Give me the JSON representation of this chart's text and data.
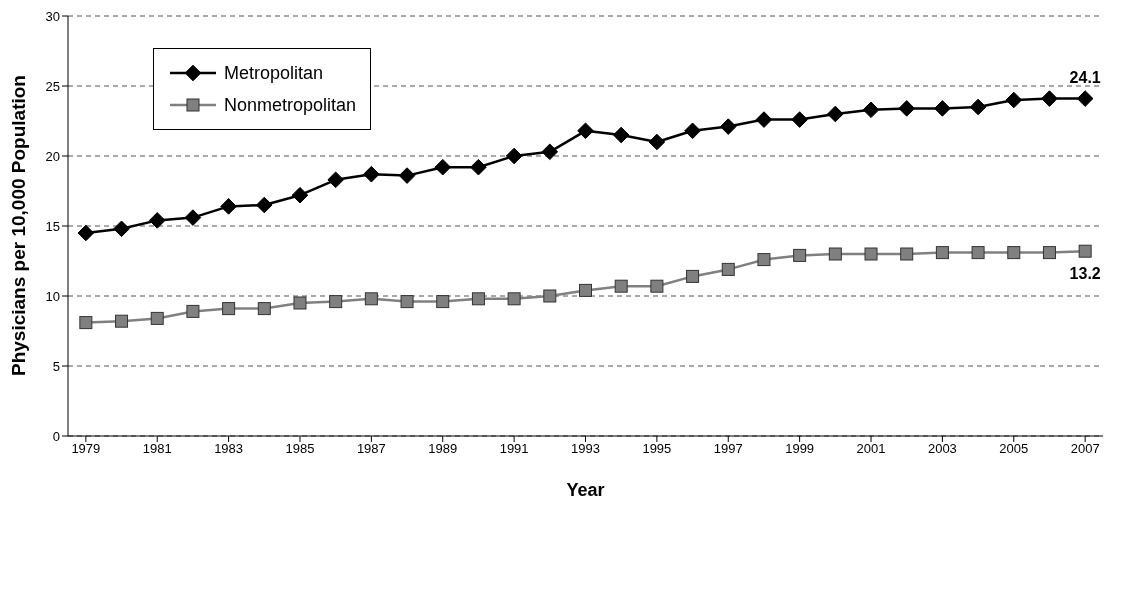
{
  "chart_data": {
    "type": "line",
    "xlabel": "Year",
    "ylabel": "Physicians per 10,000 Population",
    "x": [
      1979,
      1980,
      1981,
      1982,
      1983,
      1984,
      1985,
      1986,
      1987,
      1988,
      1989,
      1990,
      1991,
      1992,
      1993,
      1994,
      1995,
      1996,
      1997,
      1998,
      1999,
      2000,
      2001,
      2002,
      2003,
      2004,
      2005,
      2006,
      2007
    ],
    "series": [
      {
        "name": "Metropolitan",
        "color": "#000000",
        "marker": "diamond",
        "values": [
          14.5,
          14.8,
          15.4,
          15.6,
          16.4,
          16.5,
          17.2,
          18.3,
          18.7,
          18.6,
          19.2,
          19.2,
          20.0,
          20.3,
          21.8,
          21.5,
          21.0,
          21.8,
          22.1,
          22.6,
          22.6,
          23.0,
          23.3,
          23.4,
          23.4,
          23.5,
          24.0,
          24.1,
          24.1
        ],
        "value_labels": [
          null,
          null,
          null,
          null,
          null,
          null,
          null,
          null,
          null,
          null,
          null,
          null,
          null,
          null,
          null,
          null,
          null,
          null,
          null,
          null,
          null,
          null,
          null,
          null,
          null,
          null,
          null,
          null,
          "24.1"
        ]
      },
      {
        "name": "Nonmetropolitan",
        "color": "#808080",
        "marker": "square",
        "values": [
          8.1,
          8.2,
          8.4,
          8.9,
          9.1,
          9.1,
          9.5,
          9.6,
          9.8,
          9.6,
          9.6,
          9.8,
          9.8,
          10.0,
          10.4,
          10.7,
          10.7,
          11.4,
          11.9,
          12.6,
          12.9,
          13.0,
          13.0,
          13.0,
          13.1,
          13.1,
          13.1,
          13.1,
          13.2
        ],
        "value_labels": [
          null,
          null,
          null,
          null,
          null,
          null,
          null,
          null,
          null,
          null,
          null,
          null,
          null,
          null,
          null,
          null,
          null,
          null,
          null,
          null,
          null,
          null,
          null,
          null,
          null,
          null,
          null,
          null,
          "13.2"
        ]
      }
    ],
    "xlim": [
      1978.5,
      2007.5
    ],
    "xticks": [
      1979,
      1981,
      1983,
      1985,
      1987,
      1989,
      1991,
      1993,
      1995,
      1997,
      1999,
      2001,
      2003,
      2005,
      2007
    ],
    "ylim": [
      0,
      30
    ],
    "yticks": [
      0,
      5,
      10,
      15,
      20,
      25,
      30
    ],
    "grid": "y",
    "legend": "top left",
    "line_style": "solid"
  }
}
